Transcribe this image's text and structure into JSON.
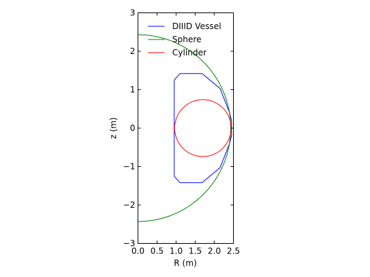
{
  "chart_data": {
    "type": "line",
    "xlabel": "R (m)",
    "ylabel": "z (m)",
    "xlim": [
      0.0,
      2.5
    ],
    "ylim": [
      -3,
      3
    ],
    "xticks": [
      0.0,
      0.5,
      1.0,
      1.5,
      2.0,
      2.5
    ],
    "xtick_labels": [
      "0.0",
      "0.5",
      "1.0",
      "1.5",
      "2.0",
      "2.5"
    ],
    "yticks": [
      -3,
      -2,
      -1,
      0,
      1,
      2,
      3
    ],
    "ytick_labels": [
      "−3",
      "−2",
      "−1",
      "0",
      "1",
      "2",
      "3"
    ],
    "grid": false,
    "legend_position": "top-left",
    "series": [
      {
        "name": "DIIID Vessel",
        "color": "#0000ff",
        "x": [
          0.95,
          1.1,
          1.68,
          2.15,
          2.4,
          2.45,
          2.45,
          2.4,
          2.15,
          1.68,
          1.1,
          0.95,
          0.95
        ],
        "y": [
          -1.25,
          -1.42,
          -1.42,
          -1.03,
          -0.4,
          -0.2,
          0.2,
          0.4,
          1.03,
          1.42,
          1.42,
          1.25,
          -1.25
        ]
      },
      {
        "name": "Sphere",
        "color": "#008000",
        "shape": "arc",
        "center": [
          0.0,
          0.0
        ],
        "radius": 2.43,
        "x": [],
        "y": []
      },
      {
        "name": "Cylinder",
        "color": "#ff0000",
        "shape": "circle",
        "center": [
          1.7,
          0.0
        ],
        "radius": 0.74,
        "x": [],
        "y": []
      }
    ]
  }
}
